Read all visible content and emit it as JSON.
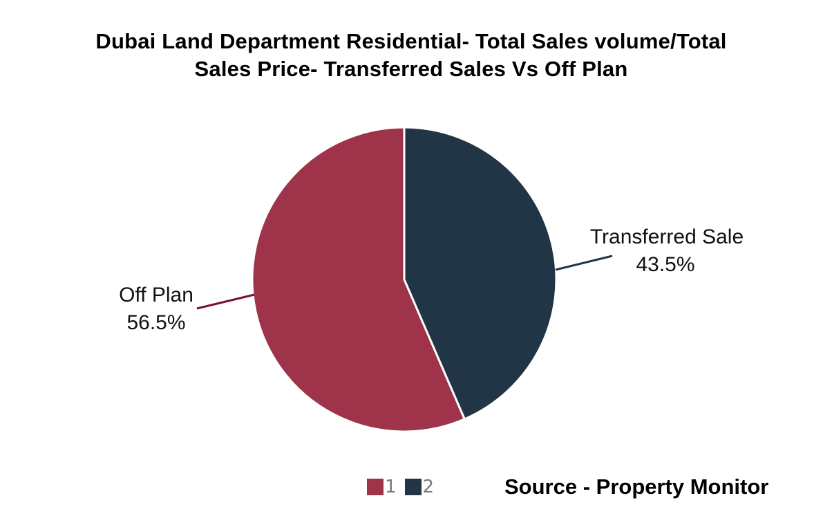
{
  "chart_data": {
    "type": "pie",
    "title_line1": "Dubai Land Department Residential- Total Sales volume/Total",
    "title_line2": "Sales Price- Transferred Sales Vs Off Plan",
    "slices": [
      {
        "label": "Off Plan",
        "value": 56.5,
        "value_label": "56.5%",
        "legend": "1",
        "color": "#9e3349",
        "leader_color": "#7a1030"
      },
      {
        "label": "Transferred Sale",
        "value": 43.5,
        "value_label": "43.5%",
        "legend": "2",
        "color": "#213547",
        "leader_color": "#213547"
      }
    ],
    "legend_position": "bottom"
  },
  "footer": {
    "source": "Source - Property Monitor"
  }
}
